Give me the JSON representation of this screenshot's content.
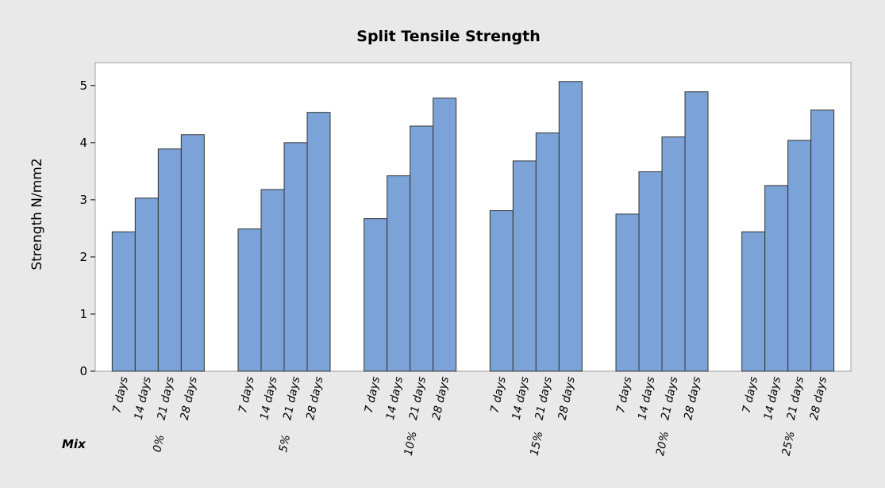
{
  "chart_data": {
    "type": "grouped-bar",
    "title": "Split Tensile Strength",
    "y_label": "Strength N/mm2",
    "x_label": "Mix",
    "groups": [
      "0%",
      "5%",
      "10%",
      "15%",
      "20%",
      "25%"
    ],
    "categories": [
      "7 days",
      "14 days",
      "21 days",
      "28 days"
    ],
    "values": [
      [
        2.44,
        3.03,
        3.89,
        4.14
      ],
      [
        2.49,
        3.18,
        4.0,
        4.53
      ],
      [
        2.67,
        3.42,
        4.29,
        4.78
      ],
      [
        2.81,
        3.68,
        4.17,
        5.07
      ],
      [
        2.75,
        3.49,
        4.1,
        4.89
      ],
      [
        2.44,
        3.25,
        4.04,
        4.57
      ]
    ],
    "color": "#7ba3d8",
    "ylim": [
      0,
      5.4
    ],
    "yticks": [
      0,
      1,
      2,
      3,
      4,
      5
    ]
  }
}
